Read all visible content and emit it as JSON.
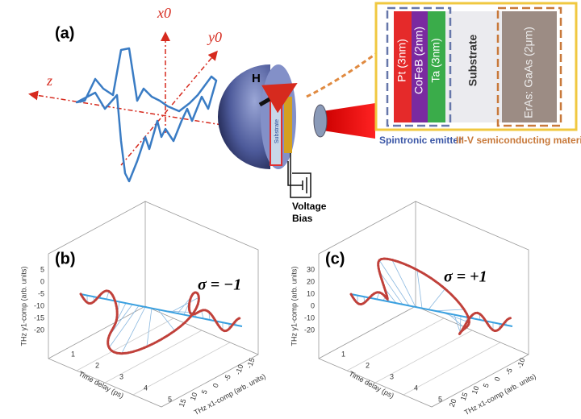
{
  "panel_a": {
    "label": "(a)",
    "axes": [
      "x0",
      "y0",
      "z"
    ],
    "field": "H",
    "layers": [
      "Pt (3nm)",
      "CoFeB (2nm)",
      "Ta (3nm)",
      "Substrate",
      "ErAs: GaAs (2μm)"
    ],
    "device_label": "Substrate",
    "captions": [
      "Spintronic emitter",
      "III-V semiconducting material"
    ],
    "bias": [
      "Voltage",
      "Bias"
    ]
  },
  "panel_b": {
    "label": "(b)",
    "sigma": "σ = −1",
    "y_axis": "THz y1-comp (arb. units)",
    "time_axis": "Time delay (ps)",
    "x_axis": "THz x1-comp (arb. units)",
    "y_ticks": [
      "5",
      "0",
      "-5",
      "-10",
      "-15",
      "-20"
    ],
    "time_ticks": [
      "1",
      "2",
      "3",
      "4",
      "5"
    ],
    "x_ticks": [
      "15",
      "10",
      "5",
      "0",
      "-5",
      "-10",
      "-15"
    ]
  },
  "panel_c": {
    "label": "(c)",
    "sigma": "σ = +1",
    "y_axis": "THz y1-comp (arb. units)",
    "time_axis": "Time delay (ps)",
    "x_axis": "THz x1-comp (arb. units)",
    "y_ticks": [
      "30",
      "20",
      "10",
      "0",
      "-10",
      "-20"
    ],
    "time_ticks": [
      "1",
      "2",
      "3",
      "4",
      "5"
    ],
    "x_ticks": [
      "20",
      "15",
      "10",
      "5",
      "0",
      "-5",
      "-10"
    ]
  }
}
